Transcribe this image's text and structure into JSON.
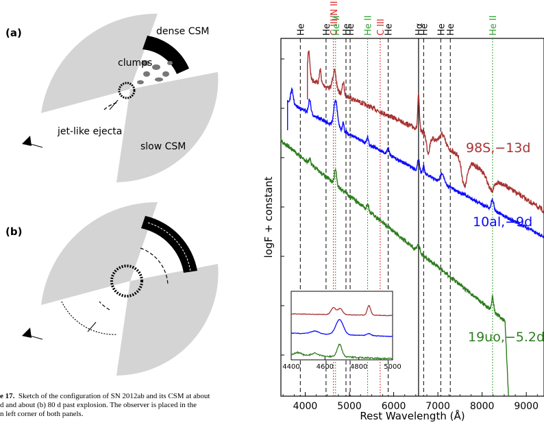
{
  "figure_left": {
    "panel_a_label": "(a)",
    "panel_b_label": "(b)",
    "label_dense_csm": "dense CSM",
    "label_clumps": "clumps",
    "label_jet_ejecta": "jet-like ejecta",
    "label_slow_csm": "slow CSM",
    "caption_prefix": "e 17.",
    "caption_line1_rest": "Sketch of the configuration of SN 2012ab and its CSM at about",
    "caption_line2": "d and about (b) 80 d past explosion. The observer is placed in the",
    "caption_line3": "n left corner of both panels."
  },
  "chart_data": {
    "type": "line",
    "xlabel": "Rest Wavelength (Å)",
    "ylabel": "logF + constant",
    "xlim": [
      3450,
      9400
    ],
    "x_ticks": [
      4000,
      5000,
      6000,
      7000,
      8000,
      9000
    ],
    "x_tick_labels": [
      "4000",
      "5000",
      "6000",
      "7000",
      "8000",
      "9000"
    ],
    "line_markers": [
      {
        "label": "He",
        "x": 3889,
        "color": "#000000",
        "style": "dashed"
      },
      {
        "label": "He",
        "x": 4471,
        "color": "#000000",
        "style": "dashed"
      },
      {
        "label": "C III/N III",
        "x": 4640,
        "color": "#d62728",
        "style": "dotted"
      },
      {
        "label": "He II",
        "x": 4686,
        "color": "#2ca02c",
        "style": "dotted"
      },
      {
        "label": "He",
        "x": 4922,
        "color": "#000000",
        "style": "dashed"
      },
      {
        "label": "He",
        "x": 5016,
        "color": "#000000",
        "style": "dashed"
      },
      {
        "label": "He II",
        "x": 5411,
        "color": "#2ca02c",
        "style": "dotted"
      },
      {
        "label": "C III",
        "x": 5696,
        "color": "#d62728",
        "style": "dotted"
      },
      {
        "label": "He",
        "x": 5876,
        "color": "#000000",
        "style": "dashed"
      },
      {
        "label": "Hα",
        "x": 6563,
        "color": "#000000",
        "style": "solid"
      },
      {
        "label": "He",
        "x": 6678,
        "color": "#000000",
        "style": "dashed"
      },
      {
        "label": "He",
        "x": 7065,
        "color": "#000000",
        "style": "dashed"
      },
      {
        "label": "He",
        "x": 7281,
        "color": "#000000",
        "style": "dashed"
      },
      {
        "label": "He II",
        "x": 8237,
        "color": "#2ca02c",
        "style": "dotted"
      }
    ],
    "series": [
      {
        "name": "98S,−13d",
        "color": "#a83232",
        "x_start": 4050,
        "x_end": 9400
      },
      {
        "name": "10al,−9d",
        "color": "#0a0aff",
        "x_start": 3600,
        "x_end": 9400
      },
      {
        "name": "19uo,−5.2d",
        "color": "#2e7d1e",
        "x_start": 3450,
        "x_end": 8600
      }
    ],
    "inset": {
      "xlim": [
        4400,
        5000
      ],
      "x_ticks": [
        4400,
        4600,
        4800,
        5000
      ],
      "x_tick_labels": [
        "4400",
        "4600",
        "4800",
        "5000"
      ]
    },
    "grid": false
  }
}
